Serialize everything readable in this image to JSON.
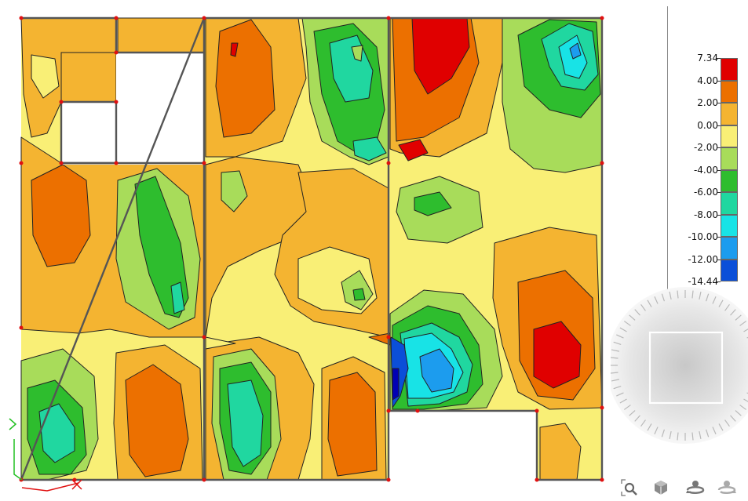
{
  "legend": {
    "items": [
      {
        "label": "7.34",
        "color": "#e00000"
      },
      {
        "label": "4.00",
        "color": "#ec7000"
      },
      {
        "label": "2.00",
        "color": "#f4b431"
      },
      {
        "label": "0.00",
        "color": "#f9ef76"
      },
      {
        "label": "-2.00",
        "color": "#a8dc5a"
      },
      {
        "label": "-4.00",
        "color": "#2ebd2e"
      },
      {
        "label": "-6.00",
        "color": "#20d7a0"
      },
      {
        "label": "-8.00",
        "color": "#18e3e6"
      },
      {
        "label": "-10.00",
        "color": "#1c9cee"
      },
      {
        "label": "-12.00",
        "color": "#0b4fd8"
      },
      {
        "label": "-14.44",
        "color": "#0000b4"
      }
    ]
  },
  "toolbar": {
    "tools": [
      {
        "name": "zoom-extents-icon"
      },
      {
        "name": "view-cube-icon"
      },
      {
        "name": "orbit-icon"
      },
      {
        "name": "orbit-alt-icon"
      }
    ]
  }
}
